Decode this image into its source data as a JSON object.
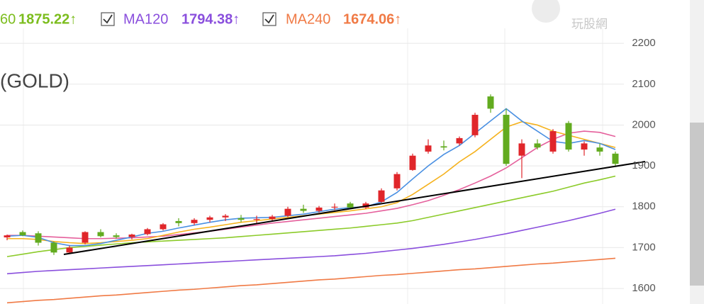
{
  "chart_data": {
    "type": "candlestick",
    "title": "(GOLD)",
    "watermark": "玩股網",
    "legend": [
      {
        "name": "60",
        "value_label": "1875.22↑",
        "color": "#7cbd1e"
      },
      {
        "name": "MA120",
        "value_label": "1794.38↑",
        "color": "#8a4fdd"
      },
      {
        "name": "MA240",
        "value_label": "1674.06↑",
        "color": "#f07a45"
      }
    ],
    "up_color": "#e0262a",
    "down_color": "#62ab1f",
    "open": [
      1725,
      1738,
      1735,
      1712,
      1688,
      1712,
      1738,
      1730,
      1726,
      1733,
      1745,
      1765,
      1760,
      1768,
      1774,
      1772,
      1768,
      1770,
      1778,
      1795,
      1790,
      1798,
      1808,
      1798,
      1812,
      1845,
      1890,
      1935,
      1948,
      1955,
      1975,
      2070,
      2025,
      1925,
      1955,
      1935,
      2005,
      1940,
      1945,
      1930
    ],
    "high": [
      1732,
      1742,
      1740,
      1715,
      1705,
      1740,
      1745,
      1735,
      1734,
      1748,
      1760,
      1772,
      1772,
      1778,
      1782,
      1780,
      1778,
      1780,
      1800,
      1805,
      1802,
      1808,
      1812,
      1812,
      1845,
      1885,
      1930,
      1965,
      1962,
      1972,
      2030,
      2075,
      2040,
      1965,
      1965,
      1990,
      2010,
      1960,
      1955,
      1935
    ],
    "low": [
      1718,
      1728,
      1705,
      1682,
      1686,
      1708,
      1725,
      1722,
      1720,
      1730,
      1742,
      1752,
      1755,
      1762,
      1765,
      1762,
      1760,
      1765,
      1775,
      1785,
      1786,
      1792,
      1795,
      1795,
      1810,
      1840,
      1888,
      1930,
      1938,
      1950,
      1970,
      2030,
      1900,
      1870,
      1940,
      1930,
      1935,
      1925,
      1925,
      1900
    ],
    "close": [
      1730,
      1730,
      1712,
      1688,
      1700,
      1738,
      1728,
      1726,
      1732,
      1745,
      1757,
      1760,
      1768,
      1774,
      1778,
      1768,
      1770,
      1776,
      1795,
      1790,
      1798,
      1800,
      1798,
      1808,
      1840,
      1880,
      1925,
      1950,
      1945,
      1968,
      2025,
      2040,
      1905,
      1955,
      1945,
      1985,
      1940,
      1955,
      1935,
      1905
    ],
    "series": [
      {
        "color": "#f07a45",
        "values": [
          1565,
          1568,
          1571,
          1573,
          1576,
          1579,
          1582,
          1584,
          1587,
          1590,
          1593,
          1596,
          1598,
          1601,
          1604,
          1607,
          1609,
          1612,
          1615,
          1618,
          1621,
          1623,
          1626,
          1629,
          1632,
          1634,
          1637,
          1640,
          1643,
          1646,
          1648,
          1651,
          1654,
          1657,
          1660,
          1662,
          1665,
          1668,
          1671,
          1674
        ]
      },
      {
        "color": "#8a4fdd",
        "values": [
          1636,
          1639,
          1642,
          1644,
          1646,
          1648,
          1650,
          1652,
          1654,
          1656,
          1658,
          1660,
          1662,
          1664,
          1666,
          1668,
          1670,
          1672,
          1674,
          1676,
          1678,
          1680,
          1683,
          1686,
          1690,
          1694,
          1698,
          1703,
          1708,
          1714,
          1720,
          1727,
          1734,
          1742,
          1750,
          1758,
          1766,
          1775,
          1784,
          1794
        ]
      },
      {
        "color": "#8ccb2a",
        "values": [
          1678,
          1684,
          1690,
          1695,
          1700,
          1703,
          1706,
          1709,
          1712,
          1714,
          1716,
          1718,
          1720,
          1722,
          1724,
          1727,
          1730,
          1733,
          1736,
          1739,
          1742,
          1745,
          1748,
          1752,
          1756,
          1760,
          1766,
          1774,
          1782,
          1790,
          1798,
          1806,
          1814,
          1822,
          1830,
          1838,
          1848,
          1858,
          1866,
          1875
        ]
      },
      {
        "color": "#e5609c",
        "values": [
          1730,
          1730,
          1728,
          1726,
          1724,
          1722,
          1722,
          1723,
          1724,
          1726,
          1728,
          1732,
          1736,
          1740,
          1745,
          1750,
          1755,
          1760,
          1764,
          1768,
          1772,
          1776,
          1780,
          1784,
          1790,
          1796,
          1805,
          1815,
          1828,
          1842,
          1858,
          1875,
          1895,
          1920,
          1945,
          1965,
          1980,
          1985,
          1982,
          1972
        ]
      },
      {
        "color": "#f5b21e",
        "values": [
          1722,
          1722,
          1720,
          1715,
          1712,
          1710,
          1712,
          1715,
          1718,
          1722,
          1730,
          1738,
          1745,
          1750,
          1756,
          1762,
          1766,
          1770,
          1774,
          1778,
          1782,
          1786,
          1790,
          1795,
          1800,
          1810,
          1830,
          1855,
          1880,
          1910,
          1935,
          1965,
          1995,
          2008,
          2000,
          1985,
          1975,
          1965,
          1955,
          1945
        ]
      },
      {
        "color": "#4a90e2",
        "values": [
          1728,
          1730,
          1725,
          1712,
          1705,
          1705,
          1710,
          1718,
          1726,
          1735,
          1740,
          1748,
          1755,
          1762,
          1768,
          1772,
          1773,
          1774,
          1778,
          1782,
          1788,
          1794,
          1798,
          1800,
          1812,
          1835,
          1868,
          1900,
          1928,
          1950,
          1980,
          2010,
          2040,
          2010,
          1985,
          1960,
          1955,
          1962,
          1955,
          1940
        ]
      }
    ],
    "ylim": [
      1562,
      2306
    ],
    "yticks": [
      1600,
      1700,
      1800,
      1900,
      2000,
      2100,
      2200
    ],
    "grid": true
  }
}
